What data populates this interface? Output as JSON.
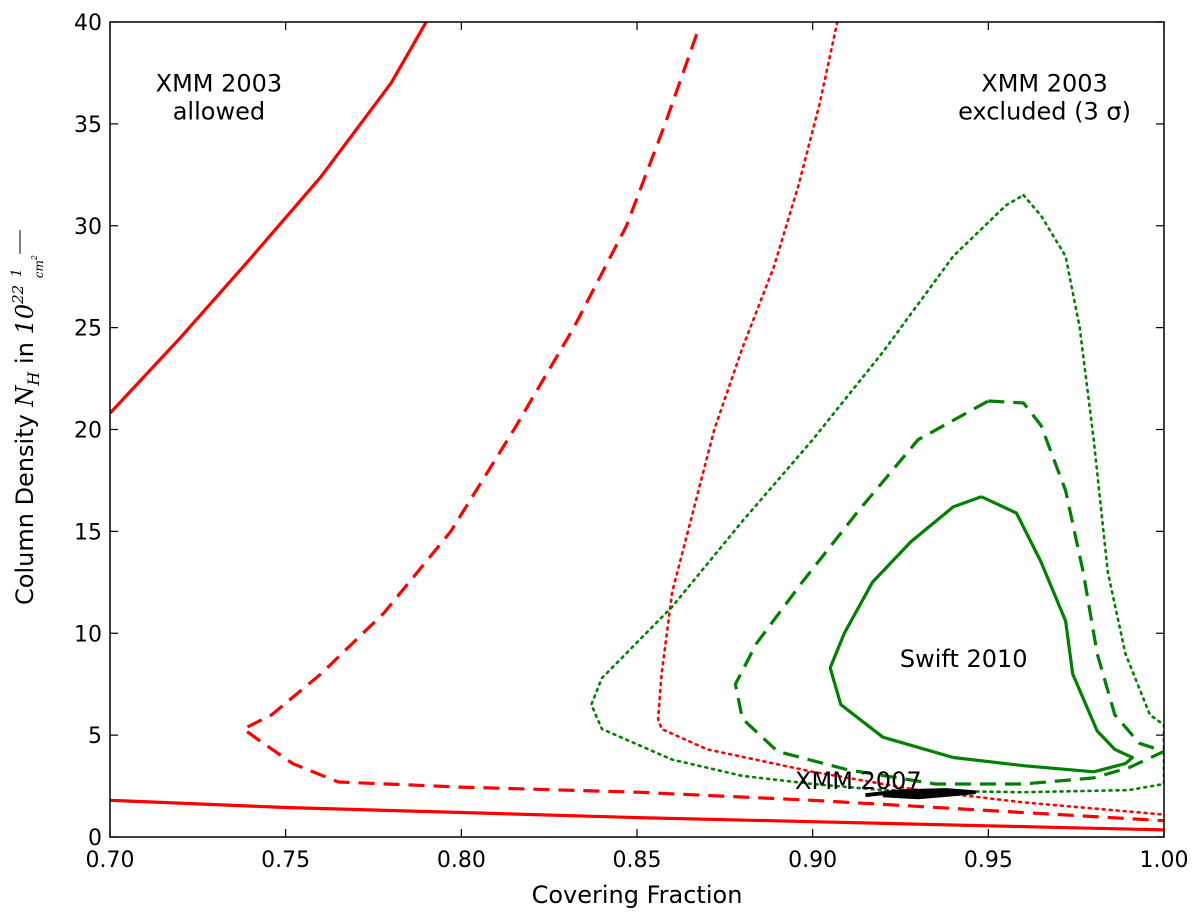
{
  "chart_data": {
    "type": "line",
    "title": "",
    "xlabel": "Covering Fraction",
    "ylabel": {
      "text": "Column Density",
      "symbol": "N",
      "subscript": "H",
      "connector": "in",
      "unit_base": "10",
      "unit_exponent": "22",
      "unit_fraction_numerator": "1",
      "unit_fraction_denominator": "cm",
      "unit_fraction_denominator_exponent": "2"
    },
    "xlim": [
      0.7,
      1.0
    ],
    "ylim": [
      0,
      40
    ],
    "x_ticks": [
      "0.70",
      "0.75",
      "0.80",
      "0.85",
      "0.90",
      "0.95",
      "1.00"
    ],
    "x_tick_values": [
      0.7,
      0.75,
      0.8,
      0.85,
      0.9,
      0.95,
      1.0
    ],
    "y_ticks": [
      "0",
      "5",
      "10",
      "15",
      "20",
      "25",
      "30",
      "35",
      "40"
    ],
    "y_tick_values": [
      0,
      5,
      10,
      15,
      20,
      25,
      30,
      35,
      40
    ],
    "colors": {
      "xmm2003": "#ff0000",
      "swift2010": "#008000",
      "xmm2007": "#000000"
    },
    "series": [
      {
        "name": "XMM 2003 1σ upper",
        "group": "xmm2003",
        "style": "solid",
        "points": [
          [
            0.7,
            20.8
          ],
          [
            0.72,
            24.5
          ],
          [
            0.74,
            28.4
          ],
          [
            0.76,
            32.4
          ],
          [
            0.78,
            37.0
          ],
          [
            0.79,
            40.0
          ]
        ]
      },
      {
        "name": "XMM 2003 1σ lower",
        "group": "xmm2003",
        "style": "solid",
        "points": [
          [
            0.7,
            1.8
          ],
          [
            0.75,
            1.45
          ],
          [
            0.8,
            1.2
          ],
          [
            0.85,
            0.95
          ],
          [
            0.9,
            0.75
          ],
          [
            0.95,
            0.55
          ],
          [
            1.0,
            0.35
          ]
        ]
      },
      {
        "name": "XMM 2003 2σ",
        "group": "xmm2003",
        "style": "dashed",
        "points": [
          [
            0.867,
            39.4
          ],
          [
            0.858,
            35.0
          ],
          [
            0.847,
            30.0
          ],
          [
            0.832,
            25.0
          ],
          [
            0.815,
            20.0
          ],
          [
            0.797,
            15.0
          ],
          [
            0.778,
            11.0
          ],
          [
            0.76,
            8.0
          ],
          [
            0.746,
            6.0
          ],
          [
            0.738,
            5.3
          ],
          [
            0.742,
            4.8
          ],
          [
            0.752,
            3.6
          ],
          [
            0.765,
            2.7
          ],
          [
            0.8,
            2.45
          ],
          [
            0.85,
            2.2
          ],
          [
            0.9,
            1.8
          ],
          [
            0.95,
            1.3
          ],
          [
            1.0,
            0.8
          ]
        ]
      },
      {
        "name": "XMM 2003 3σ",
        "group": "xmm2003",
        "style": "dotted",
        "points": [
          [
            0.907,
            40.0
          ],
          [
            0.902,
            36.0
          ],
          [
            0.896,
            32.0
          ],
          [
            0.889,
            28.0
          ],
          [
            0.88,
            24.0
          ],
          [
            0.872,
            20.0
          ],
          [
            0.866,
            16.0
          ],
          [
            0.86,
            12.0
          ],
          [
            0.857,
            8.0
          ],
          [
            0.856,
            5.8
          ],
          [
            0.857,
            5.3
          ],
          [
            0.87,
            4.3
          ],
          [
            0.9,
            3.2
          ],
          [
            0.93,
            2.3
          ],
          [
            0.96,
            1.7
          ],
          [
            0.98,
            1.4
          ],
          [
            1.0,
            1.1
          ]
        ]
      },
      {
        "name": "Swift 2010 1σ",
        "group": "swift2010",
        "style": "solid",
        "points": [
          [
            0.948,
            16.7
          ],
          [
            0.958,
            15.9
          ],
          [
            0.965,
            13.5
          ],
          [
            0.972,
            10.6
          ],
          [
            0.974,
            8.0
          ],
          [
            0.981,
            5.2
          ],
          [
            0.986,
            4.3
          ],
          [
            0.991,
            3.9
          ],
          [
            0.989,
            3.6
          ],
          [
            0.98,
            3.2
          ],
          [
            0.96,
            3.5
          ],
          [
            0.94,
            3.9
          ],
          [
            0.92,
            4.9
          ],
          [
            0.908,
            6.5
          ],
          [
            0.905,
            8.3
          ],
          [
            0.909,
            10.0
          ],
          [
            0.917,
            12.5
          ],
          [
            0.928,
            14.5
          ],
          [
            0.94,
            16.2
          ],
          [
            0.948,
            16.7
          ]
        ]
      },
      {
        "name": "Swift 2010 2σ",
        "group": "swift2010",
        "style": "dashed",
        "points": [
          [
            0.95,
            21.4
          ],
          [
            0.96,
            21.3
          ],
          [
            0.965,
            20.2
          ],
          [
            0.972,
            17.0
          ],
          [
            0.977,
            13.0
          ],
          [
            0.981,
            9.0
          ],
          [
            0.986,
            6.0
          ],
          [
            0.993,
            4.6
          ],
          [
            1.0,
            4.2
          ],
          [
            0.99,
            3.4
          ],
          [
            0.98,
            2.9
          ],
          [
            0.96,
            2.6
          ],
          [
            0.935,
            2.6
          ],
          [
            0.91,
            3.3
          ],
          [
            0.89,
            4.2
          ],
          [
            0.88,
            5.8
          ],
          [
            0.878,
            7.5
          ],
          [
            0.884,
            9.5
          ],
          [
            0.897,
            12.5
          ],
          [
            0.913,
            16.0
          ],
          [
            0.93,
            19.5
          ],
          [
            0.95,
            21.4
          ]
        ]
      },
      {
        "name": "Swift 2010 3σ",
        "group": "swift2010",
        "style": "dotted",
        "points": [
          [
            0.96,
            31.5
          ],
          [
            0.965,
            30.5
          ],
          [
            0.972,
            28.5
          ],
          [
            0.976,
            25.0
          ],
          [
            0.98,
            19.5
          ],
          [
            0.984,
            13.0
          ],
          [
            0.989,
            9.0
          ],
          [
            0.996,
            6.0
          ],
          [
            1.0,
            5.5
          ],
          [
            1.0,
            2.6
          ],
          [
            0.99,
            2.3
          ],
          [
            0.96,
            2.2
          ],
          [
            0.92,
            2.3
          ],
          [
            0.9,
            2.6
          ],
          [
            0.88,
            3.0
          ],
          [
            0.86,
            3.8
          ],
          [
            0.84,
            5.3
          ],
          [
            0.837,
            6.5
          ],
          [
            0.84,
            7.8
          ],
          [
            0.86,
            11.3
          ],
          [
            0.88,
            15.5
          ],
          [
            0.9,
            19.5
          ],
          [
            0.92,
            23.8
          ],
          [
            0.94,
            28.5
          ],
          [
            0.955,
            31.0
          ],
          [
            0.96,
            31.5
          ]
        ]
      },
      {
        "name": "XMM 2007",
        "group": "xmm2007",
        "style": "solid",
        "points": [
          [
            0.92,
            2.05
          ],
          [
            0.93,
            1.95
          ],
          [
            0.94,
            2.1
          ],
          [
            0.946,
            2.2
          ],
          [
            0.938,
            2.3
          ],
          [
            0.925,
            2.25
          ],
          [
            0.915,
            2.05
          ]
        ]
      }
    ],
    "annotations": [
      {
        "id": "xmm2003-allowed",
        "lines": [
          "XMM 2003",
          "allowed"
        ],
        "x": 0.731,
        "y": 36.6
      },
      {
        "id": "xmm2003-excluded",
        "lines": [
          "XMM 2003",
          "excluded (3 σ)"
        ],
        "x": 0.966,
        "y": 36.6
      },
      {
        "id": "swift2010",
        "lines": [
          "Swift 2010"
        ],
        "x": 0.943,
        "y": 8.35
      },
      {
        "id": "xmm2007",
        "lines": [
          "XMM 2007"
        ],
        "x": 0.913,
        "y": 2.35
      }
    ]
  }
}
